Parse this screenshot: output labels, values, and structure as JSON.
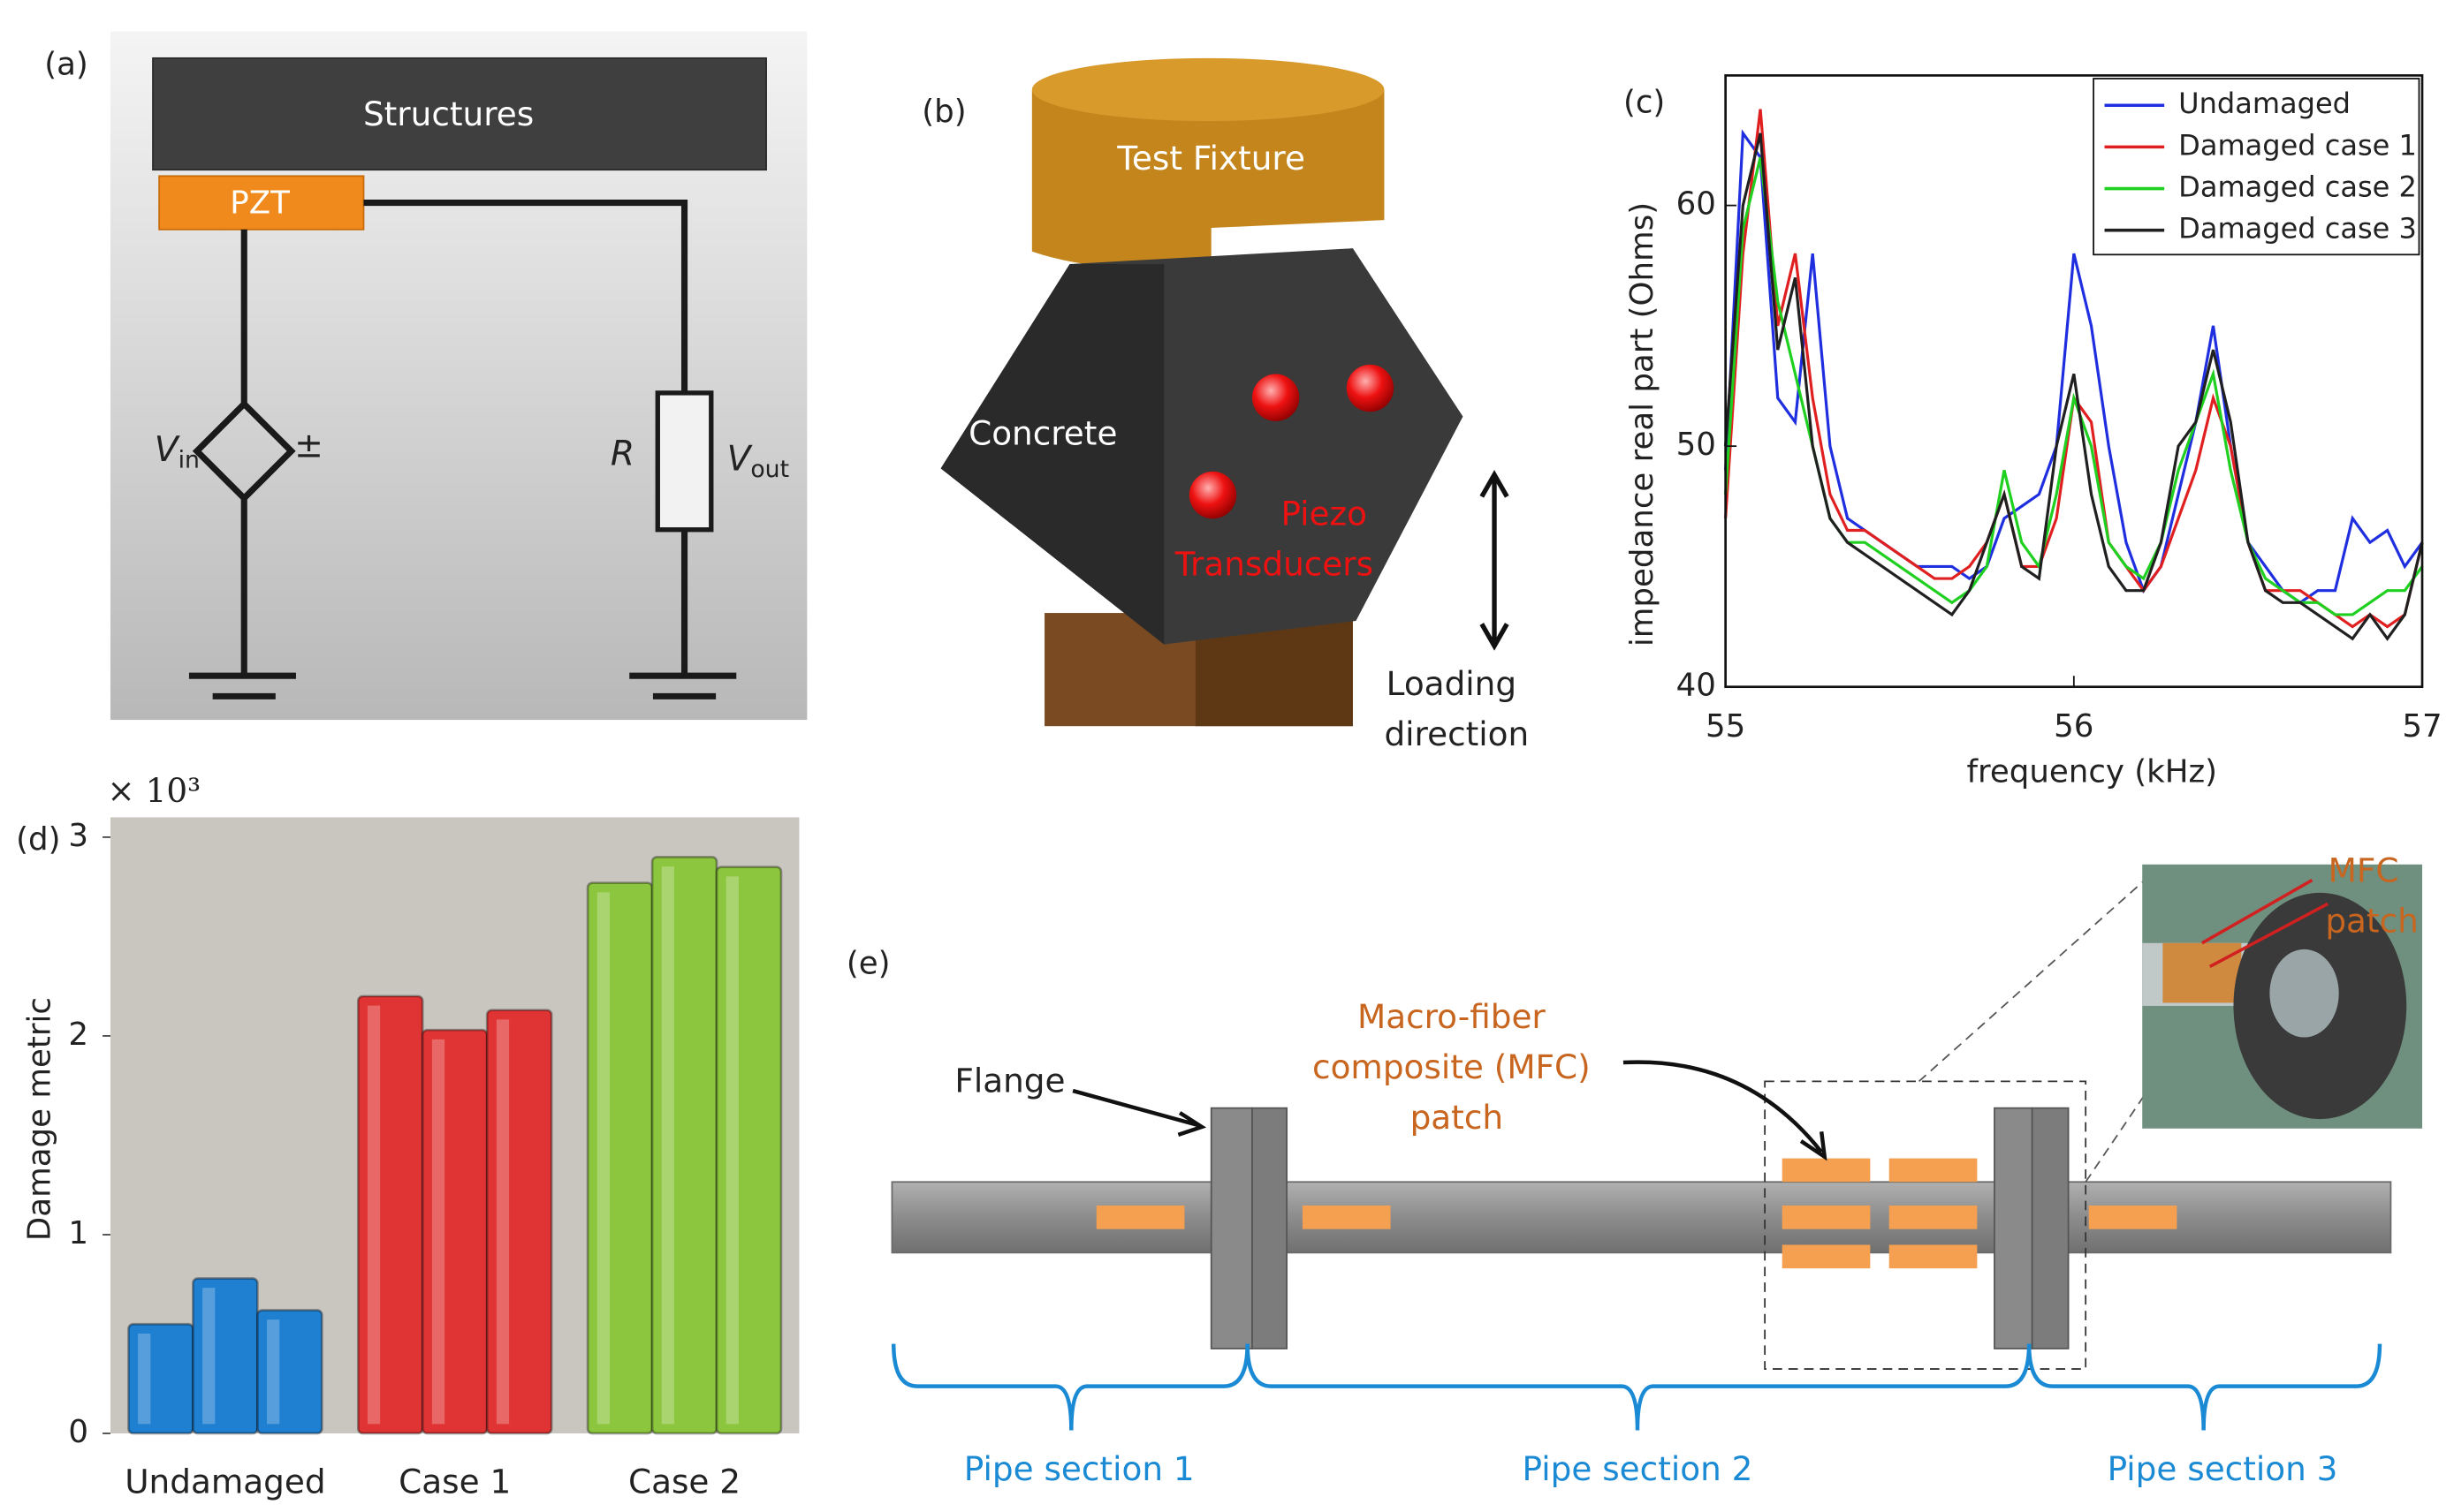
{
  "panel_a": {
    "label": "(a)",
    "structures": "Structures",
    "pzt": "PZT",
    "vin": {
      "symbol": "V",
      "subscript": "in"
    },
    "source_sign": "±",
    "resistor": "R",
    "vout": {
      "symbol": "V",
      "subscript": "out"
    }
  },
  "panel_b": {
    "label": "(b)",
    "fixture": "Test Fixture",
    "concrete": "Concrete",
    "transducers": [
      "Piezo",
      "Transducers"
    ],
    "loading": [
      "Loading",
      "direction"
    ]
  },
  "chart_data": [
    {
      "type": "line",
      "panel_label": "(c)",
      "x_label": "frequency (kHz)",
      "y_label": "impedance real part (Ohms)",
      "xlim": [
        55,
        57
      ],
      "ylim": [
        40,
        65.4
      ],
      "xticks": [
        55,
        56,
        57
      ],
      "yticks": [
        40,
        50,
        60
      ],
      "legend": "top-right",
      "x": [
        55.0,
        55.05,
        55.1,
        55.15,
        55.2,
        55.25,
        55.3,
        55.35,
        55.4,
        55.45,
        55.5,
        55.55,
        55.6,
        55.65,
        55.7,
        55.75,
        55.8,
        55.85,
        55.9,
        55.95,
        56.0,
        56.05,
        56.1,
        56.15,
        56.2,
        56.25,
        56.3,
        56.35,
        56.4,
        56.45,
        56.5,
        56.55,
        56.6,
        56.65,
        56.7,
        56.75,
        56.8,
        56.85,
        56.9,
        56.95,
        57.0
      ],
      "series": [
        {
          "name": "Undamaged",
          "color": "#1f2fe0",
          "values": [
            49,
            63,
            62,
            52,
            51,
            58,
            50,
            47,
            46.5,
            46,
            45.5,
            45,
            45,
            45,
            44.5,
            45,
            47,
            47.5,
            48,
            50,
            58,
            55,
            50,
            46,
            44,
            45,
            48,
            51,
            55,
            50,
            46,
            45,
            44,
            43.5,
            44,
            44,
            47,
            46,
            46.5,
            45,
            46
          ]
        },
        {
          "name": "Damaged case 1",
          "color": "#e02020",
          "values": [
            47,
            58,
            64,
            55,
            58,
            52,
            48,
            46.5,
            46.5,
            46,
            45.5,
            45,
            44.5,
            44.5,
            45,
            46,
            48,
            45,
            45,
            47,
            52,
            51,
            46,
            45,
            44,
            45,
            47,
            49,
            52,
            50,
            46,
            44,
            44,
            44,
            43.5,
            43,
            42.5,
            43,
            42.5,
            43,
            46
          ]
        },
        {
          "name": "Damaged case 2",
          "color": "#20d020",
          "values": [
            48,
            59,
            62,
            56,
            53,
            50,
            47,
            46,
            46,
            45.5,
            45,
            44.5,
            44,
            43.5,
            44,
            45,
            49,
            46,
            45,
            48,
            52,
            50,
            46,
            45,
            44.5,
            46,
            49,
            51,
            53,
            49,
            46,
            44.5,
            44,
            43.5,
            43.5,
            43,
            43,
            43.5,
            44,
            44,
            45
          ]
        },
        {
          "name": "Damaged case 3",
          "color": "#202020",
          "values": [
            50,
            60,
            63,
            54,
            57,
            50,
            47,
            46,
            45.5,
            45,
            44.5,
            44,
            43.5,
            43,
            44,
            46,
            48,
            45,
            44.5,
            50,
            53,
            48,
            45,
            44,
            44,
            46,
            50,
            51,
            54,
            51,
            46,
            44,
            43.5,
            43.5,
            43,
            42.5,
            42,
            43,
            42,
            43,
            46
          ]
        }
      ]
    },
    {
      "type": "bar",
      "panel_label": "(d)",
      "y_label": "Damage metric",
      "multiplier": "× 10³",
      "ylim": [
        0,
        3.1
      ],
      "yticks": [
        0,
        1,
        2,
        3
      ],
      "categories": [
        "Undamaged",
        "Case 1",
        "Case 2"
      ],
      "colors": [
        "#1f7fd0",
        "#e03434",
        "#8cc63f"
      ],
      "values": [
        [
          0.55,
          0.78,
          0.62
        ],
        [
          2.2,
          2.03,
          2.13
        ],
        [
          2.77,
          2.9,
          2.85
        ]
      ]
    }
  ],
  "panel_e": {
    "label": "(e)",
    "flange": "Flange",
    "mfc_callout": [
      "Macro-fiber",
      "composite (MFC)",
      "patch"
    ],
    "mfc_photo": [
      "MFC",
      "patch"
    ],
    "sections": [
      "Pipe section 1",
      "Pipe section 2",
      "Pipe section 3"
    ]
  }
}
